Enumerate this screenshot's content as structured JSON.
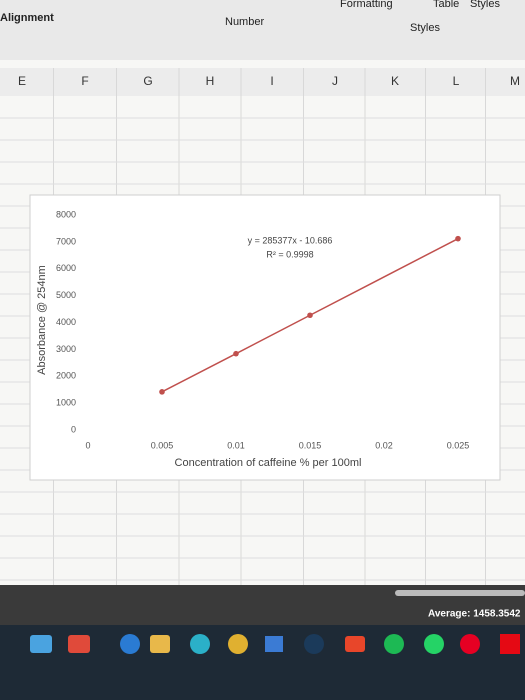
{
  "ui": {
    "ribbon": [
      "Alignment",
      "Number",
      "Formatting",
      "Table",
      "Styles",
      "Styles"
    ],
    "columns": [
      "E",
      "F",
      "G",
      "H",
      "I",
      "J",
      "K",
      "L",
      "M"
    ],
    "status": "Average: 1458.3542"
  },
  "chart_data": {
    "type": "line",
    "x": [
      0.005,
      0.01,
      0.015,
      0.025
    ],
    "series": [
      {
        "name": "Absorbance",
        "color": "#c0504d",
        "values": [
          1420,
          2840,
          4270,
          7120
        ]
      }
    ],
    "xlim": [
      0,
      0.025
    ],
    "xticks": [
      0,
      0.005,
      0.01,
      0.015,
      0.02,
      0.025
    ],
    "ylim": [
      0,
      8000
    ],
    "yticks": [
      0,
      1000,
      2000,
      3000,
      4000,
      5000,
      6000,
      7000,
      8000
    ],
    "xlabel": "Concentration of caffeine % per 100ml",
    "ylabel": "Absorbance @ 254nm",
    "annotations": [
      "y = 285377x - 10.686",
      "R² = 0.9998"
    ],
    "grid": false
  }
}
